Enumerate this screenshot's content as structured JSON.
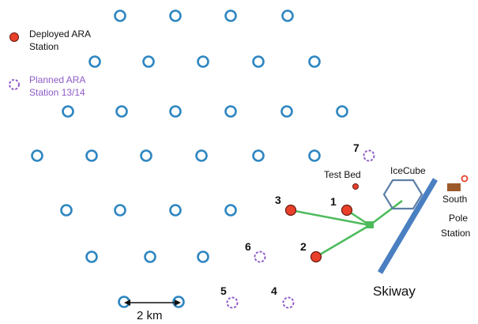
{
  "legend": {
    "deployed_line1": "Deployed ARA",
    "deployed_line2": "Station",
    "planned_line1": "Planned ARA",
    "planned_line2": "Station 13/14"
  },
  "labels": {
    "test_bed": "Test Bed",
    "icecube": "IceCube",
    "south_line1": "South",
    "south_line2": "Pole",
    "south_line3": "Station",
    "skiway": "Skiway",
    "scale": "2 km"
  },
  "deployed_stations": [
    {
      "id": "1"
    },
    {
      "id": "2"
    },
    {
      "id": "3"
    }
  ],
  "planned_stations": [
    {
      "id": "4"
    },
    {
      "id": "5"
    },
    {
      "id": "6"
    },
    {
      "id": "7"
    }
  ],
  "colors": {
    "grid_station": "#2e86c1",
    "deployed_fill": "#e8402a",
    "deployed_stroke": "#6b1a10",
    "planned": "#8e5cc9",
    "cable": "#4cbb5c",
    "skiway": "#4a7fc1",
    "icecube": "#5d7fa6",
    "building": "#9c5a2a"
  }
}
